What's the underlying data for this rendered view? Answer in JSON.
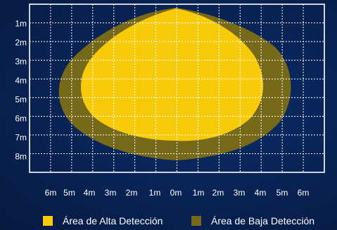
{
  "diagram": {
    "y_labels": [
      "1m",
      "2m",
      "3m",
      "4m",
      "5m",
      "6m",
      "7m",
      "8m"
    ],
    "x_labels": [
      "6m",
      "5m",
      "4m",
      "3m",
      "2m",
      "1m",
      "0m",
      "1m",
      "2m",
      "3m",
      "4m",
      "5m",
      "6m"
    ],
    "high_zone_color": "#f7cb0a",
    "low_zone_color": "#76691a",
    "grid_color": "#ffffff"
  },
  "legend": {
    "items": [
      {
        "label": "Área de Alta Detección",
        "color": "#f7cb0a"
      },
      {
        "label": "Área de Baja Detección",
        "color": "#76691a"
      }
    ]
  }
}
